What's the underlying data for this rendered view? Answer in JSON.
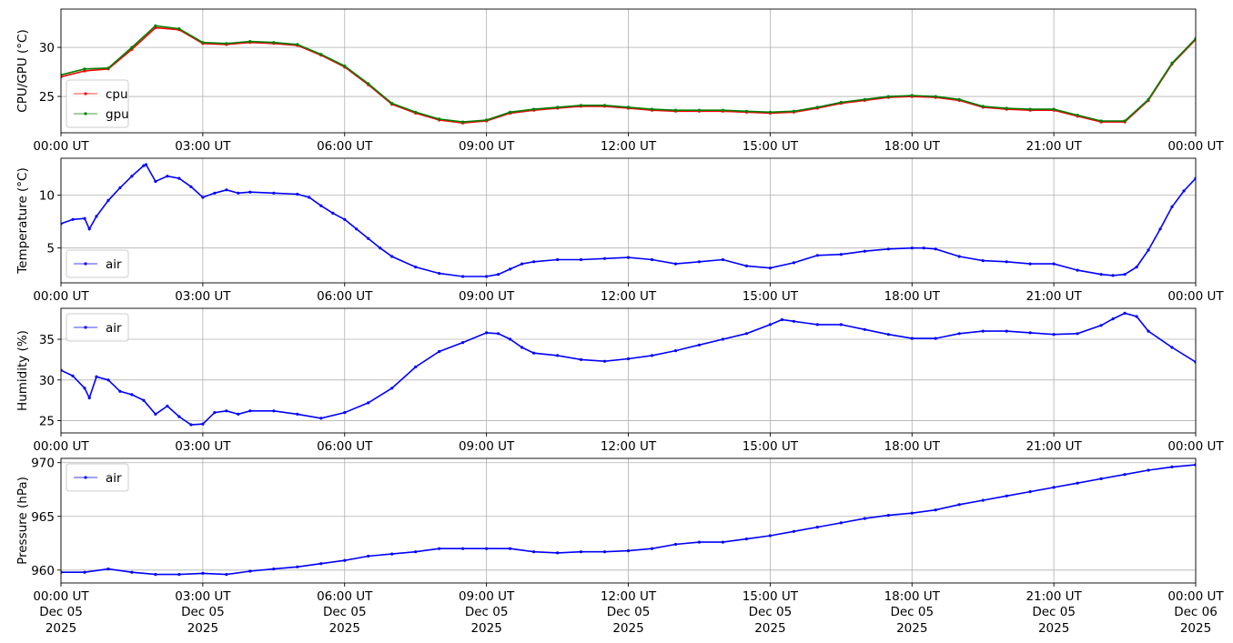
{
  "chart_data": [
    {
      "type": "line",
      "ylabel": "CPU/GPU (°C)",
      "xlabel": "",
      "xlim": [
        0,
        24
      ],
      "ylim": [
        21.3,
        33.9
      ],
      "yticks": [
        25,
        30
      ],
      "xtick_labels": [
        "00:00 UT",
        "03:00 UT",
        "06:00 UT",
        "09:00 UT",
        "12:00 UT",
        "15:00 UT",
        "18:00 UT",
        "21:00 UT",
        "00:00 UT"
      ],
      "grid": true,
      "legend": "lower-left",
      "series": [
        {
          "name": "cpu",
          "color": "#ff0000",
          "x": [
            0,
            0.5,
            1.0,
            1.5,
            2.0,
            2.5,
            3.0,
            3.5,
            4.0,
            4.5,
            5.0,
            5.5,
            6.0,
            6.5,
            7.0,
            7.5,
            8.0,
            8.5,
            9.0,
            9.5,
            10.0,
            10.5,
            11.0,
            11.5,
            12.0,
            12.5,
            13.0,
            13.5,
            14.0,
            14.5,
            15.0,
            15.5,
            16.0,
            16.5,
            17.0,
            17.5,
            18.0,
            18.5,
            19.0,
            19.5,
            20.0,
            20.5,
            21.0,
            21.5,
            22.0,
            22.5,
            23.0,
            23.5,
            24.0
          ],
          "values": [
            27.0,
            27.6,
            27.8,
            29.8,
            32.0,
            31.8,
            30.4,
            30.3,
            30.5,
            30.4,
            30.2,
            29.2,
            28.0,
            26.2,
            24.2,
            23.3,
            22.6,
            22.3,
            22.5,
            23.3,
            23.6,
            23.8,
            24.0,
            24.0,
            23.8,
            23.6,
            23.5,
            23.5,
            23.5,
            23.4,
            23.3,
            23.4,
            23.8,
            24.3,
            24.6,
            24.9,
            25.0,
            24.9,
            24.6,
            23.9,
            23.7,
            23.6,
            23.6,
            23.0,
            22.4,
            22.4,
            24.6,
            28.3,
            30.8
          ]
        },
        {
          "name": "gpu",
          "color": "#008000",
          "x": [
            0,
            0.5,
            1.0,
            1.5,
            2.0,
            2.5,
            3.0,
            3.5,
            4.0,
            4.5,
            5.0,
            5.5,
            6.0,
            6.5,
            7.0,
            7.5,
            8.0,
            8.5,
            9.0,
            9.5,
            10.0,
            10.5,
            11.0,
            11.5,
            12.0,
            12.5,
            13.0,
            13.5,
            14.0,
            14.5,
            15.0,
            15.5,
            16.0,
            16.5,
            17.0,
            17.5,
            18.0,
            18.5,
            19.0,
            19.5,
            20.0,
            20.5,
            21.0,
            21.5,
            22.0,
            22.5,
            23.0,
            23.5,
            24.0
          ],
          "values": [
            27.2,
            27.8,
            27.9,
            30.0,
            32.2,
            31.9,
            30.5,
            30.4,
            30.6,
            30.5,
            30.3,
            29.3,
            28.1,
            26.3,
            24.3,
            23.4,
            22.7,
            22.4,
            22.6,
            23.4,
            23.7,
            23.9,
            24.1,
            24.1,
            23.9,
            23.7,
            23.6,
            23.6,
            23.6,
            23.5,
            23.4,
            23.5,
            23.9,
            24.4,
            24.7,
            25.0,
            25.1,
            25.0,
            24.7,
            24.0,
            23.8,
            23.7,
            23.7,
            23.1,
            22.5,
            22.5,
            24.7,
            28.4,
            30.9
          ]
        }
      ]
    },
    {
      "type": "line",
      "ylabel": "Temperature (°C)",
      "xlabel": "",
      "xlim": [
        0,
        24
      ],
      "ylim": [
        1.7,
        13.5
      ],
      "yticks": [
        5,
        10
      ],
      "xtick_labels": [
        "00:00 UT",
        "03:00 UT",
        "06:00 UT",
        "09:00 UT",
        "12:00 UT",
        "15:00 UT",
        "18:00 UT",
        "21:00 UT",
        "00:00 UT"
      ],
      "grid": true,
      "legend": "lower-left",
      "series": [
        {
          "name": "air",
          "color": "#0000ff",
          "x": [
            0,
            0.25,
            0.5,
            0.6,
            0.75,
            1.0,
            1.25,
            1.5,
            1.75,
            1.8,
            2.0,
            2.25,
            2.5,
            2.75,
            3.0,
            3.25,
            3.5,
            3.75,
            4.0,
            4.5,
            5.0,
            5.25,
            5.5,
            5.75,
            6.0,
            6.25,
            6.5,
            6.75,
            7.0,
            7.5,
            8.0,
            8.5,
            9.0,
            9.25,
            9.5,
            9.75,
            10.0,
            10.5,
            11.0,
            11.5,
            12.0,
            12.5,
            13.0,
            13.5,
            14.0,
            14.5,
            15.0,
            15.5,
            16.0,
            16.5,
            17.0,
            17.5,
            18.0,
            18.25,
            18.5,
            19.0,
            19.5,
            20.0,
            20.5,
            21.0,
            21.5,
            22.0,
            22.25,
            22.5,
            22.75,
            23.0,
            23.25,
            23.5,
            23.75,
            24.0
          ],
          "values": [
            7.3,
            7.7,
            7.8,
            6.8,
            8.0,
            9.5,
            10.7,
            11.8,
            12.8,
            12.9,
            11.3,
            11.8,
            11.6,
            10.8,
            9.8,
            10.2,
            10.5,
            10.2,
            10.3,
            10.2,
            10.1,
            9.8,
            9.0,
            8.3,
            7.7,
            6.8,
            5.9,
            5.0,
            4.2,
            3.2,
            2.6,
            2.3,
            2.3,
            2.5,
            3.0,
            3.5,
            3.7,
            3.9,
            3.9,
            4.0,
            4.1,
            3.9,
            3.5,
            3.7,
            3.9,
            3.3,
            3.1,
            3.6,
            4.3,
            4.4,
            4.7,
            4.9,
            5.0,
            5.0,
            4.9,
            4.2,
            3.8,
            3.7,
            3.5,
            3.5,
            2.9,
            2.5,
            2.4,
            2.5,
            3.2,
            4.8,
            6.8,
            8.9,
            10.4,
            11.6
          ]
        }
      ]
    },
    {
      "type": "line",
      "ylabel": "Humidity (%)",
      "xlabel": "",
      "xlim": [
        0,
        24
      ],
      "ylim": [
        23.5,
        38.8
      ],
      "yticks": [
        25,
        30,
        35
      ],
      "xtick_labels": [
        "00:00 UT",
        "03:00 UT",
        "06:00 UT",
        "09:00 UT",
        "12:00 UT",
        "15:00 UT",
        "18:00 UT",
        "21:00 UT",
        "00:00 UT"
      ],
      "grid": true,
      "legend": "upper-left",
      "series": [
        {
          "name": "air",
          "color": "#0000ff",
          "x": [
            0,
            0.25,
            0.5,
            0.6,
            0.75,
            1.0,
            1.25,
            1.5,
            1.75,
            2.0,
            2.25,
            2.5,
            2.75,
            3.0,
            3.25,
            3.5,
            3.75,
            4.0,
            4.5,
            5.0,
            5.5,
            6.0,
            6.5,
            7.0,
            7.5,
            8.0,
            8.5,
            9.0,
            9.25,
            9.5,
            9.75,
            10.0,
            10.5,
            11.0,
            11.5,
            12.0,
            12.5,
            13.0,
            13.5,
            14.0,
            14.5,
            15.0,
            15.25,
            15.5,
            16.0,
            16.5,
            17.0,
            17.5,
            18.0,
            18.5,
            19.0,
            19.5,
            20.0,
            20.5,
            21.0,
            21.5,
            22.0,
            22.25,
            22.5,
            22.75,
            23.0,
            23.5,
            24.0
          ],
          "values": [
            31.2,
            30.5,
            29.0,
            27.8,
            30.4,
            30.0,
            28.6,
            28.2,
            27.5,
            25.8,
            26.8,
            25.5,
            24.5,
            24.6,
            26.0,
            26.2,
            25.8,
            26.2,
            26.2,
            25.8,
            25.3,
            26.0,
            27.2,
            29.0,
            31.6,
            33.5,
            34.6,
            35.8,
            35.7,
            35.0,
            34.0,
            33.3,
            33.0,
            32.5,
            32.3,
            32.6,
            33.0,
            33.6,
            34.3,
            35.0,
            35.7,
            36.8,
            37.4,
            37.2,
            36.8,
            36.8,
            36.2,
            35.6,
            35.1,
            35.1,
            35.7,
            36.0,
            36.0,
            35.8,
            35.6,
            35.7,
            36.7,
            37.5,
            38.2,
            37.8,
            36.0,
            34.0,
            32.2
          ]
        }
      ]
    },
    {
      "type": "line",
      "ylabel": "Pressure (hPa)",
      "xlabel": "",
      "xlim": [
        0,
        24
      ],
      "ylim": [
        958.8,
        970.4
      ],
      "yticks": [
        960,
        965,
        970
      ],
      "xtick_labels": [
        "00:00 UT",
        "03:00 UT",
        "06:00 UT",
        "09:00 UT",
        "12:00 UT",
        "15:00 UT",
        "18:00 UT",
        "21:00 UT",
        "00:00 UT"
      ],
      "xtick_dates": [
        "Dec 05",
        "Dec 05",
        "Dec 05",
        "Dec 05",
        "Dec 05",
        "Dec 05",
        "Dec 05",
        "Dec 05",
        "Dec 06"
      ],
      "xtick_years": [
        "2025",
        "2025",
        "2025",
        "2025",
        "2025",
        "2025",
        "2025",
        "2025",
        "2025"
      ],
      "grid": true,
      "legend": "upper-left",
      "series": [
        {
          "name": "air",
          "color": "#0000ff",
          "x": [
            0,
            0.5,
            1.0,
            1.5,
            2.0,
            2.5,
            3.0,
            3.5,
            4.0,
            4.5,
            5.0,
            5.5,
            6.0,
            6.5,
            7.0,
            7.5,
            8.0,
            8.5,
            9.0,
            9.5,
            10.0,
            10.5,
            11.0,
            11.5,
            12.0,
            12.5,
            13.0,
            13.5,
            14.0,
            14.5,
            15.0,
            15.5,
            16.0,
            16.5,
            17.0,
            17.5,
            18.0,
            18.5,
            19.0,
            19.5,
            20.0,
            20.5,
            21.0,
            21.5,
            22.0,
            22.5,
            23.0,
            23.5,
            24.0
          ],
          "values": [
            959.8,
            959.8,
            960.1,
            959.8,
            959.6,
            959.6,
            959.7,
            959.6,
            959.9,
            960.1,
            960.3,
            960.6,
            960.9,
            961.3,
            961.5,
            961.7,
            962.0,
            962.0,
            962.0,
            962.0,
            961.7,
            961.6,
            961.7,
            961.7,
            961.8,
            962.0,
            962.4,
            962.6,
            962.6,
            962.9,
            963.2,
            963.6,
            964.0,
            964.4,
            964.8,
            965.1,
            965.3,
            965.6,
            966.1,
            966.5,
            966.9,
            967.3,
            967.7,
            968.1,
            968.5,
            968.9,
            969.3,
            969.6,
            969.8
          ]
        }
      ]
    }
  ]
}
